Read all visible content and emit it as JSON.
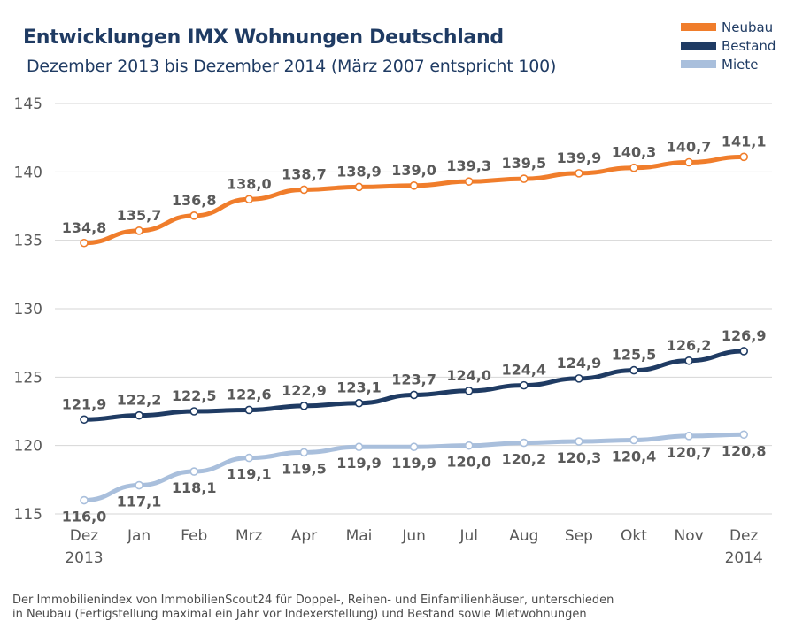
{
  "title": "Entwicklungen IMX Wohnungen Deutschland",
  "subtitle": "Dezember 2013 bis Dezember 2014 (März 2007 entspricht 100)",
  "footnote": {
    "line1": "Der Immobilienindex von ImmobilienScout24 für Doppel-, Reihen- und Einfamilienhäuser, unterschieden",
    "line2": "in Neubau (Fertigstellung maximal ein Jahr vor Indexerstellung) und Bestand sowie Mietwohnungen"
  },
  "chart_data": {
    "type": "line",
    "categories": [
      "Dez",
      "Jan",
      "Feb",
      "Mrz",
      "Apr",
      "Mai",
      "Jun",
      "Jul",
      "Aug",
      "Sep",
      "Okt",
      "Nov",
      "Dez"
    ],
    "first_year_label": "2013",
    "last_year_label": "2014",
    "ylim": [
      115,
      145
    ],
    "yticks": [
      115,
      120,
      125,
      130,
      135,
      140,
      145
    ],
    "grid": true,
    "legend_position": "top-right",
    "series": [
      {
        "name": "Neubau",
        "color": "#f07d2b",
        "values": [
          134.8,
          135.7,
          136.8,
          138.0,
          138.7,
          138.9,
          139.0,
          139.3,
          139.5,
          139.9,
          140.3,
          140.7,
          141.1
        ],
        "labels": [
          "134,8",
          "135,7",
          "136,8",
          "138,0",
          "138,7",
          "138,9",
          "139,0",
          "139,3",
          "139,5",
          "139,9",
          "140,3",
          "140,7",
          "141,1"
        ],
        "label_position": "above"
      },
      {
        "name": "Bestand",
        "color": "#1f3b63",
        "values": [
          121.9,
          122.2,
          122.5,
          122.6,
          122.9,
          123.1,
          123.7,
          124.0,
          124.4,
          124.9,
          125.5,
          126.2,
          126.9
        ],
        "labels": [
          "121,9",
          "122,2",
          "122,5",
          "122,6",
          "122,9",
          "123,1",
          "123,7",
          "124,0",
          "124,4",
          "124,9",
          "125,5",
          "126,2",
          "126,9"
        ],
        "label_position": "above"
      },
      {
        "name": "Miete",
        "color": "#a9bfdc",
        "values": [
          116.0,
          117.1,
          118.1,
          119.1,
          119.5,
          119.9,
          119.9,
          120.0,
          120.2,
          120.3,
          120.4,
          120.7,
          120.8
        ],
        "labels": [
          "116,0",
          "117,1",
          "118,1",
          "119,1",
          "119,5",
          "119,9",
          "119,9",
          "120,0",
          "120,2",
          "120,3",
          "120,4",
          "120,7",
          "120,8"
        ],
        "label_position": "below"
      }
    ]
  }
}
